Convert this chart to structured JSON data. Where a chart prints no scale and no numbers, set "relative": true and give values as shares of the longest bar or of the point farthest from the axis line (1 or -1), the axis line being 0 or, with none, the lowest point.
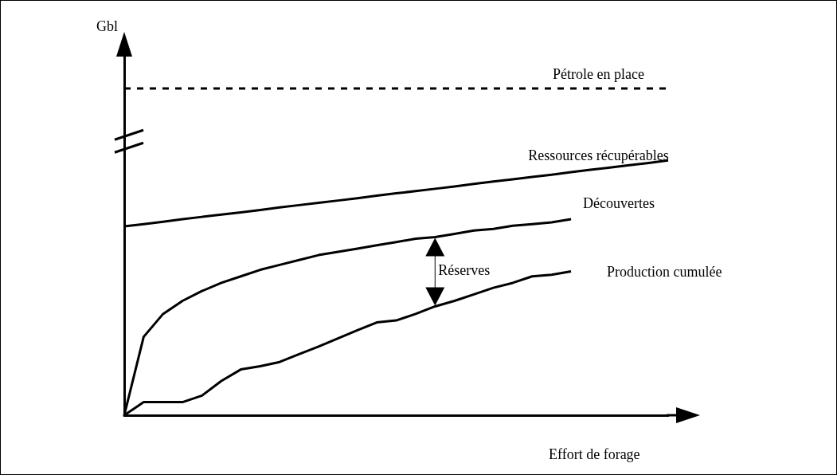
{
  "chart_data": {
    "type": "line",
    "relative": true,
    "ylabel": "Gbl",
    "xlabel": "Effort de forage",
    "legend": false,
    "grid": false,
    "marker": "none",
    "line_style": "solid",
    "annotations": [
      "Réserves"
    ],
    "categories": [
      null,
      null,
      null,
      null,
      null,
      null,
      null,
      null,
      null,
      null,
      null,
      null,
      null,
      null,
      null,
      null,
      null,
      null,
      null,
      null,
      null,
      null,
      null,
      null,
      null,
      null,
      null,
      null,
      null
    ],
    "series": [
      {
        "name": "Pétrole en place",
        "color": "#000000",
        "line_style": "dashed",
        "values": [
          1,
          1,
          1,
          1,
          1,
          1,
          1,
          1,
          1,
          1,
          1,
          1,
          1,
          1,
          1,
          1,
          1,
          1,
          1,
          1,
          1,
          1,
          1,
          1,
          1,
          1,
          1,
          1,
          1
        ]
      },
      {
        "name": "Ressources récupérables",
        "color": "#000000",
        "values": [
          0.578,
          0.585,
          0.592,
          0.6,
          0.607,
          0.614,
          0.621,
          0.628,
          0.636,
          0.643,
          0.65,
          0.657,
          0.664,
          0.672,
          0.679,
          0.686,
          0.693,
          0.7,
          0.708,
          0.715,
          0.722,
          0.729,
          0.736,
          0.744,
          0.751,
          0.758,
          0.765,
          0.772,
          0.78
        ]
      },
      {
        "name": "Découvertes",
        "color": "#000000",
        "values": [
          0,
          0.24,
          0.31,
          0.35,
          0.38,
          0.405,
          0.425,
          0.445,
          0.46,
          0.475,
          0.49,
          0.5,
          0.51,
          0.52,
          0.53,
          0.54,
          0.545,
          0.555,
          0.565,
          0.57,
          0.58,
          0.585,
          0.59,
          0.6,
          null,
          null,
          null,
          null,
          null
        ]
      },
      {
        "name": "Production cumulée",
        "color": "#000000",
        "values": [
          0,
          0.04,
          0.04,
          0.04,
          0.06,
          0.105,
          0.14,
          0.15,
          0.163,
          0.187,
          0.21,
          0.235,
          0.26,
          0.284,
          0.29,
          0.31,
          0.333,
          0.35,
          0.37,
          0.39,
          0.405,
          0.425,
          0.43,
          0.44,
          null,
          null,
          null,
          null,
          null
        ]
      }
    ]
  }
}
